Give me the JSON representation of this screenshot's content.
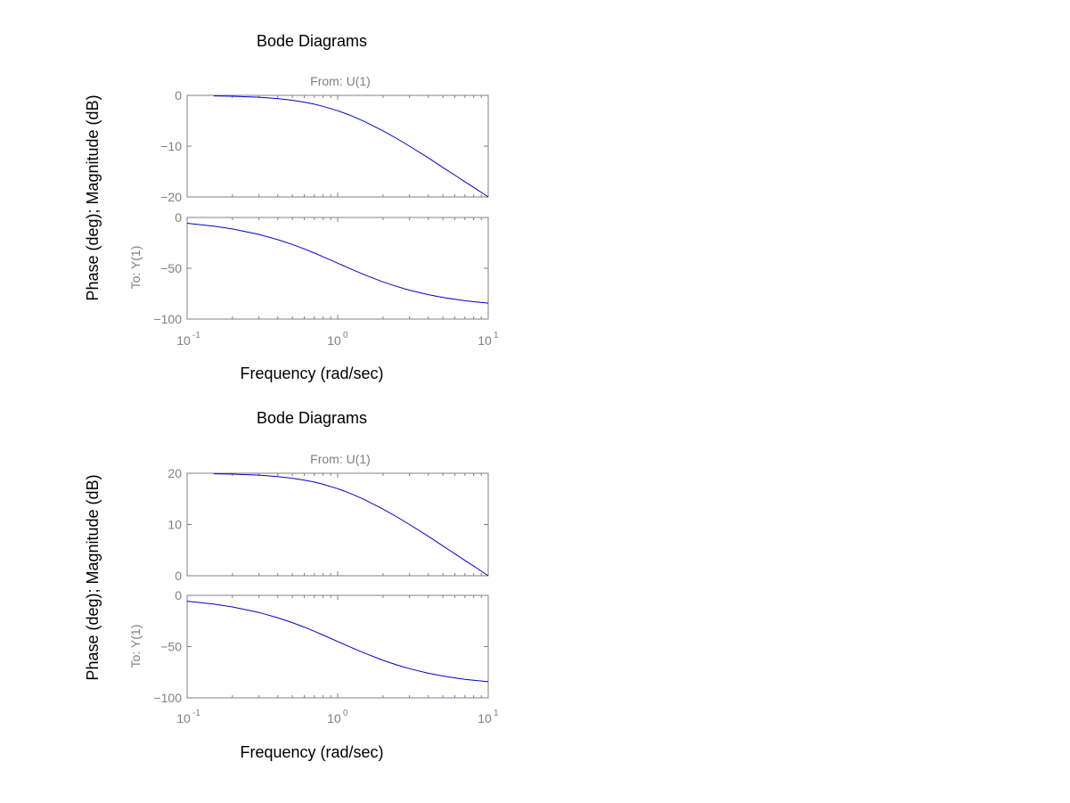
{
  "chart_data": [
    {
      "type": "line",
      "title": "Bode Diagrams",
      "xlabel": "Frequency (rad/sec)",
      "ylabel": "Phase (deg); Magnitude (dB)",
      "input_label": "From: U(1)",
      "output_label": "To: Y(1)",
      "x_scale": "log",
      "xlim": [
        0.1,
        10
      ],
      "x_ticks": [
        {
          "base": "10",
          "exp": "-1",
          "value": 0.1
        },
        {
          "base": "10",
          "exp": "0",
          "value": 1
        },
        {
          "base": "10",
          "exp": "1",
          "value": 10
        }
      ],
      "grid": false,
      "subplots": [
        {
          "name": "magnitude",
          "ylim": [
            -20,
            0
          ],
          "y_ticks": [
            "0",
            "−10",
            "−20"
          ],
          "y_tick_values": [
            0,
            -10,
            -20
          ],
          "x": [
            0.15,
            0.2,
            0.3,
            0.4,
            0.5,
            0.6,
            0.7,
            0.8,
            1.0,
            1.2,
            1.5,
            2.0,
            2.5,
            3.0,
            4.0,
            5.0,
            6.0,
            7.0,
            8.0,
            10.0
          ],
          "y": [
            -0.1,
            -0.17,
            -0.37,
            -0.64,
            -0.97,
            -1.34,
            -1.73,
            -2.15,
            -3.01,
            -3.87,
            -5.12,
            -6.99,
            -8.6,
            -10.0,
            -12.3,
            -14.2,
            -15.7,
            -17.0,
            -18.1,
            -20.0
          ]
        },
        {
          "name": "phase",
          "ylim": [
            -100,
            0
          ],
          "y_ticks": [
            "0",
            "−50",
            "−100"
          ],
          "y_tick_values": [
            0,
            -50,
            -100
          ],
          "x": [
            0.1,
            0.15,
            0.2,
            0.3,
            0.4,
            0.5,
            0.6,
            0.7,
            0.8,
            1.0,
            1.2,
            1.5,
            2.0,
            2.5,
            3.0,
            4.0,
            5.0,
            6.0,
            7.0,
            8.0,
            10.0
          ],
          "y": [
            -5.7,
            -8.5,
            -11.3,
            -16.7,
            -21.8,
            -26.6,
            -31.0,
            -35.0,
            -38.7,
            -45.0,
            -50.2,
            -56.3,
            -63.4,
            -68.2,
            -71.6,
            -76.0,
            -78.7,
            -80.5,
            -81.9,
            -82.9,
            -84.3
          ]
        }
      ]
    },
    {
      "type": "line",
      "title": "Bode Diagrams",
      "xlabel": "Frequency (rad/sec)",
      "ylabel": "Phase (deg); Magnitude (dB)",
      "input_label": "From: U(1)",
      "output_label": "To: Y(1)",
      "x_scale": "log",
      "xlim": [
        0.1,
        10
      ],
      "x_ticks": [
        {
          "base": "10",
          "exp": "-1",
          "value": 0.1
        },
        {
          "base": "10",
          "exp": "0",
          "value": 1
        },
        {
          "base": "10",
          "exp": "1",
          "value": 10
        }
      ],
      "grid": false,
      "subplots": [
        {
          "name": "magnitude",
          "ylim": [
            0,
            20
          ],
          "y_ticks": [
            "20",
            "10",
            "0"
          ],
          "y_tick_values": [
            20,
            10,
            0
          ],
          "x": [
            0.15,
            0.2,
            0.3,
            0.4,
            0.5,
            0.6,
            0.7,
            0.8,
            1.0,
            1.2,
            1.5,
            2.0,
            2.5,
            3.0,
            4.0,
            5.0,
            6.0,
            7.0,
            8.0,
            10.0
          ],
          "y": [
            19.9,
            19.83,
            19.63,
            19.36,
            19.03,
            18.66,
            18.27,
            17.85,
            16.99,
            16.13,
            14.88,
            13.01,
            11.4,
            10.0,
            7.7,
            5.8,
            4.3,
            3.0,
            1.9,
            0.0
          ]
        },
        {
          "name": "phase",
          "ylim": [
            -100,
            0
          ],
          "y_ticks": [
            "0",
            "−50",
            "−100"
          ],
          "y_tick_values": [
            0,
            -50,
            -100
          ],
          "x": [
            0.1,
            0.15,
            0.2,
            0.3,
            0.4,
            0.5,
            0.6,
            0.7,
            0.8,
            1.0,
            1.2,
            1.5,
            2.0,
            2.5,
            3.0,
            4.0,
            5.0,
            6.0,
            7.0,
            8.0,
            10.0
          ],
          "y": [
            -5.7,
            -8.5,
            -11.3,
            -16.7,
            -21.8,
            -26.6,
            -31.0,
            -35.0,
            -38.7,
            -45.0,
            -50.2,
            -56.3,
            -63.4,
            -68.2,
            -71.6,
            -76.0,
            -78.7,
            -80.5,
            -81.9,
            -82.9,
            -84.3
          ]
        }
      ]
    }
  ],
  "colors": {
    "curve": "#0000cc",
    "axes": "#808080",
    "text": "#000000",
    "background": "#ffffff"
  }
}
